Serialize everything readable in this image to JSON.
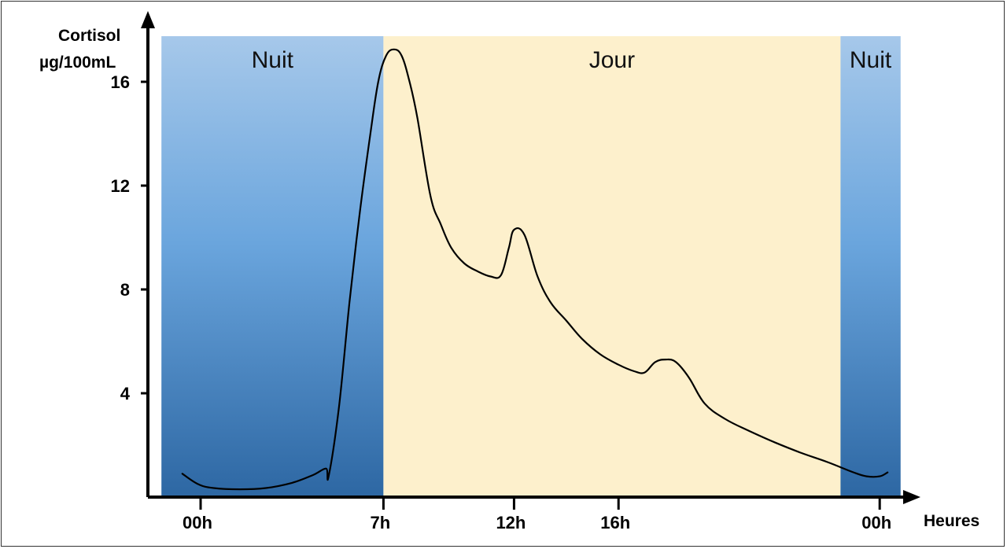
{
  "chart_data": {
    "type": "line",
    "ylabel_line1": "Cortisol",
    "ylabel_line2": "µg/100mL",
    "xlabel": "Heures",
    "ylim": [
      0,
      18
    ],
    "yticks": [
      4,
      8,
      12,
      16
    ],
    "xticks": [
      {
        "hour": 0,
        "label": "00h"
      },
      {
        "hour": 7,
        "label": "7h"
      },
      {
        "hour": 12,
        "label": "12h"
      },
      {
        "hour": 16,
        "label": "16h"
      },
      {
        "hour": 26,
        "label": "00h"
      }
    ],
    "bands": [
      {
        "label": "Nuit",
        "from_hour": -1.5,
        "to_hour": 7,
        "kind": "night"
      },
      {
        "label": "Jour",
        "from_hour": 7,
        "to_hour": 24.5,
        "kind": "day"
      },
      {
        "label": "Nuit",
        "from_hour": 24.5,
        "to_hour": 26.8,
        "kind": "night"
      }
    ],
    "series": [
      {
        "x": [
          -0.7,
          -0.1,
          0.5,
          1.5,
          2.5,
          3.5,
          4.3,
          4.8,
          4.9,
          5.3,
          5.7,
          6.1,
          6.5,
          6.8,
          7.1,
          7.4,
          7.7,
          8.0,
          8.3,
          8.8,
          9.2,
          9.6,
          10.1,
          10.6,
          11.1,
          11.5,
          11.8,
          12.0,
          12.4,
          12.9,
          13.4,
          14.0,
          14.6,
          15.3,
          16.0,
          16.6,
          17.0,
          17.4,
          17.8,
          18.2,
          18.7,
          19.3,
          20.1,
          21.0,
          22.0,
          23.0,
          24.0,
          25.0,
          25.5,
          26.0,
          26.3
        ],
        "y": [
          0.9,
          0.5,
          0.35,
          0.3,
          0.35,
          0.55,
          0.85,
          1.1,
          0.8,
          3.5,
          7.5,
          11.0,
          14.0,
          16.0,
          17.0,
          17.25,
          17.0,
          16.0,
          14.6,
          11.6,
          10.5,
          9.6,
          9.0,
          8.7,
          8.5,
          8.55,
          9.6,
          10.3,
          10.1,
          8.5,
          7.5,
          6.8,
          6.1,
          5.5,
          5.1,
          4.85,
          4.8,
          5.2,
          5.3,
          5.2,
          4.6,
          3.6,
          3.0,
          2.55,
          2.1,
          1.7,
          1.35,
          0.95,
          0.8,
          0.8,
          0.95
        ]
      }
    ],
    "colors": {
      "night_top": "#a6c8ea",
      "night_mid": "#6aa5dd",
      "night_bottom": "#2d67a3",
      "day": "#fdf0cc",
      "line": "#000000"
    }
  }
}
